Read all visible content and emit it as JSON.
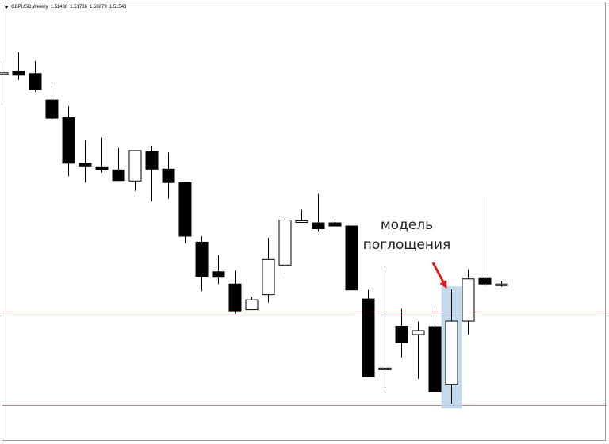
{
  "header": {
    "symbol": "GBPUSD,Weekly",
    "open": "1.51436",
    "high": "1.51736",
    "low": "1.50879",
    "close": "1.51543"
  },
  "annotation": {
    "line1": "модель",
    "line2": "поглощения"
  },
  "colors": {
    "bear_body": "#000000",
    "bull_body": "#ffffff",
    "wick": "#000000",
    "level_line": "#e8706f",
    "highlight": "#b9d3ea",
    "arrow": "#d81f1f"
  },
  "chart_data": {
    "type": "candlestick",
    "title": "GBPUSD,Weekly",
    "xlabel": "",
    "ylabel": "",
    "grid": false,
    "ylim": [
      0.0,
      1.0
    ],
    "candles": [
      {
        "open": 0.9,
        "high": 0.93,
        "low": 0.818,
        "close": 0.9
      },
      {
        "open": 0.904,
        "high": 0.952,
        "low": 0.882,
        "close": 0.894
      },
      {
        "open": 0.898,
        "high": 0.93,
        "low": 0.852,
        "close": 0.857
      },
      {
        "open": 0.831,
        "high": 0.867,
        "low": 0.783,
        "close": 0.785
      },
      {
        "open": 0.786,
        "high": 0.815,
        "low": 0.638,
        "close": 0.671
      },
      {
        "open": 0.671,
        "high": 0.73,
        "low": 0.622,
        "close": 0.662
      },
      {
        "open": 0.66,
        "high": 0.736,
        "low": 0.647,
        "close": 0.654
      },
      {
        "open": 0.654,
        "high": 0.709,
        "low": 0.633,
        "close": 0.627
      },
      {
        "open": 0.626,
        "high": 0.697,
        "low": 0.601,
        "close": 0.703
      },
      {
        "open": 0.7,
        "high": 0.715,
        "low": 0.574,
        "close": 0.656
      },
      {
        "open": 0.656,
        "high": 0.698,
        "low": 0.581,
        "close": 0.622
      },
      {
        "open": 0.622,
        "high": 0.622,
        "low": 0.468,
        "close": 0.486
      },
      {
        "open": 0.471,
        "high": 0.486,
        "low": 0.347,
        "close": 0.384
      },
      {
        "open": 0.396,
        "high": 0.438,
        "low": 0.365,
        "close": 0.382
      },
      {
        "open": 0.365,
        "high": 0.399,
        "low": 0.29,
        "close": 0.297
      },
      {
        "open": 0.3,
        "high": 0.332,
        "low": 0.3,
        "close": 0.325
      },
      {
        "open": 0.338,
        "high": 0.482,
        "low": 0.318,
        "close": 0.427
      },
      {
        "open": 0.413,
        "high": 0.532,
        "low": 0.393,
        "close": 0.527
      },
      {
        "open": 0.525,
        "high": 0.553,
        "low": 0.525,
        "close": 0.525
      },
      {
        "open": 0.52,
        "high": 0.593,
        "low": 0.499,
        "close": 0.505
      },
      {
        "open": 0.52,
        "high": 0.53,
        "low": 0.52,
        "close": 0.512
      },
      {
        "open": 0.512,
        "high": 0.512,
        "low": 0.354,
        "close": 0.35
      },
      {
        "open": 0.327,
        "high": 0.35,
        "low": 0.13,
        "close": 0.13
      },
      {
        "open": 0.15,
        "high": 0.4,
        "low": 0.103,
        "close": 0.152
      },
      {
        "open": 0.258,
        "high": 0.302,
        "low": 0.179,
        "close": 0.217
      },
      {
        "open": 0.237,
        "high": 0.27,
        "low": 0.125,
        "close": 0.247
      },
      {
        "open": 0.257,
        "high": 0.302,
        "low": 0.095,
        "close": 0.092
      },
      {
        "open": 0.111,
        "high": 0.351,
        "low": 0.062,
        "close": 0.271
      },
      {
        "open": 0.271,
        "high": 0.402,
        "low": 0.237,
        "close": 0.378
      },
      {
        "open": 0.379,
        "high": 0.586,
        "low": 0.361,
        "close": 0.365
      },
      {
        "open": 0.365,
        "high": 0.372,
        "low": 0.358,
        "close": 0.365
      }
    ],
    "levels": [
      0.296,
      0.059
    ],
    "highlight_candle_index": 27,
    "arrow_target_index": 27
  }
}
